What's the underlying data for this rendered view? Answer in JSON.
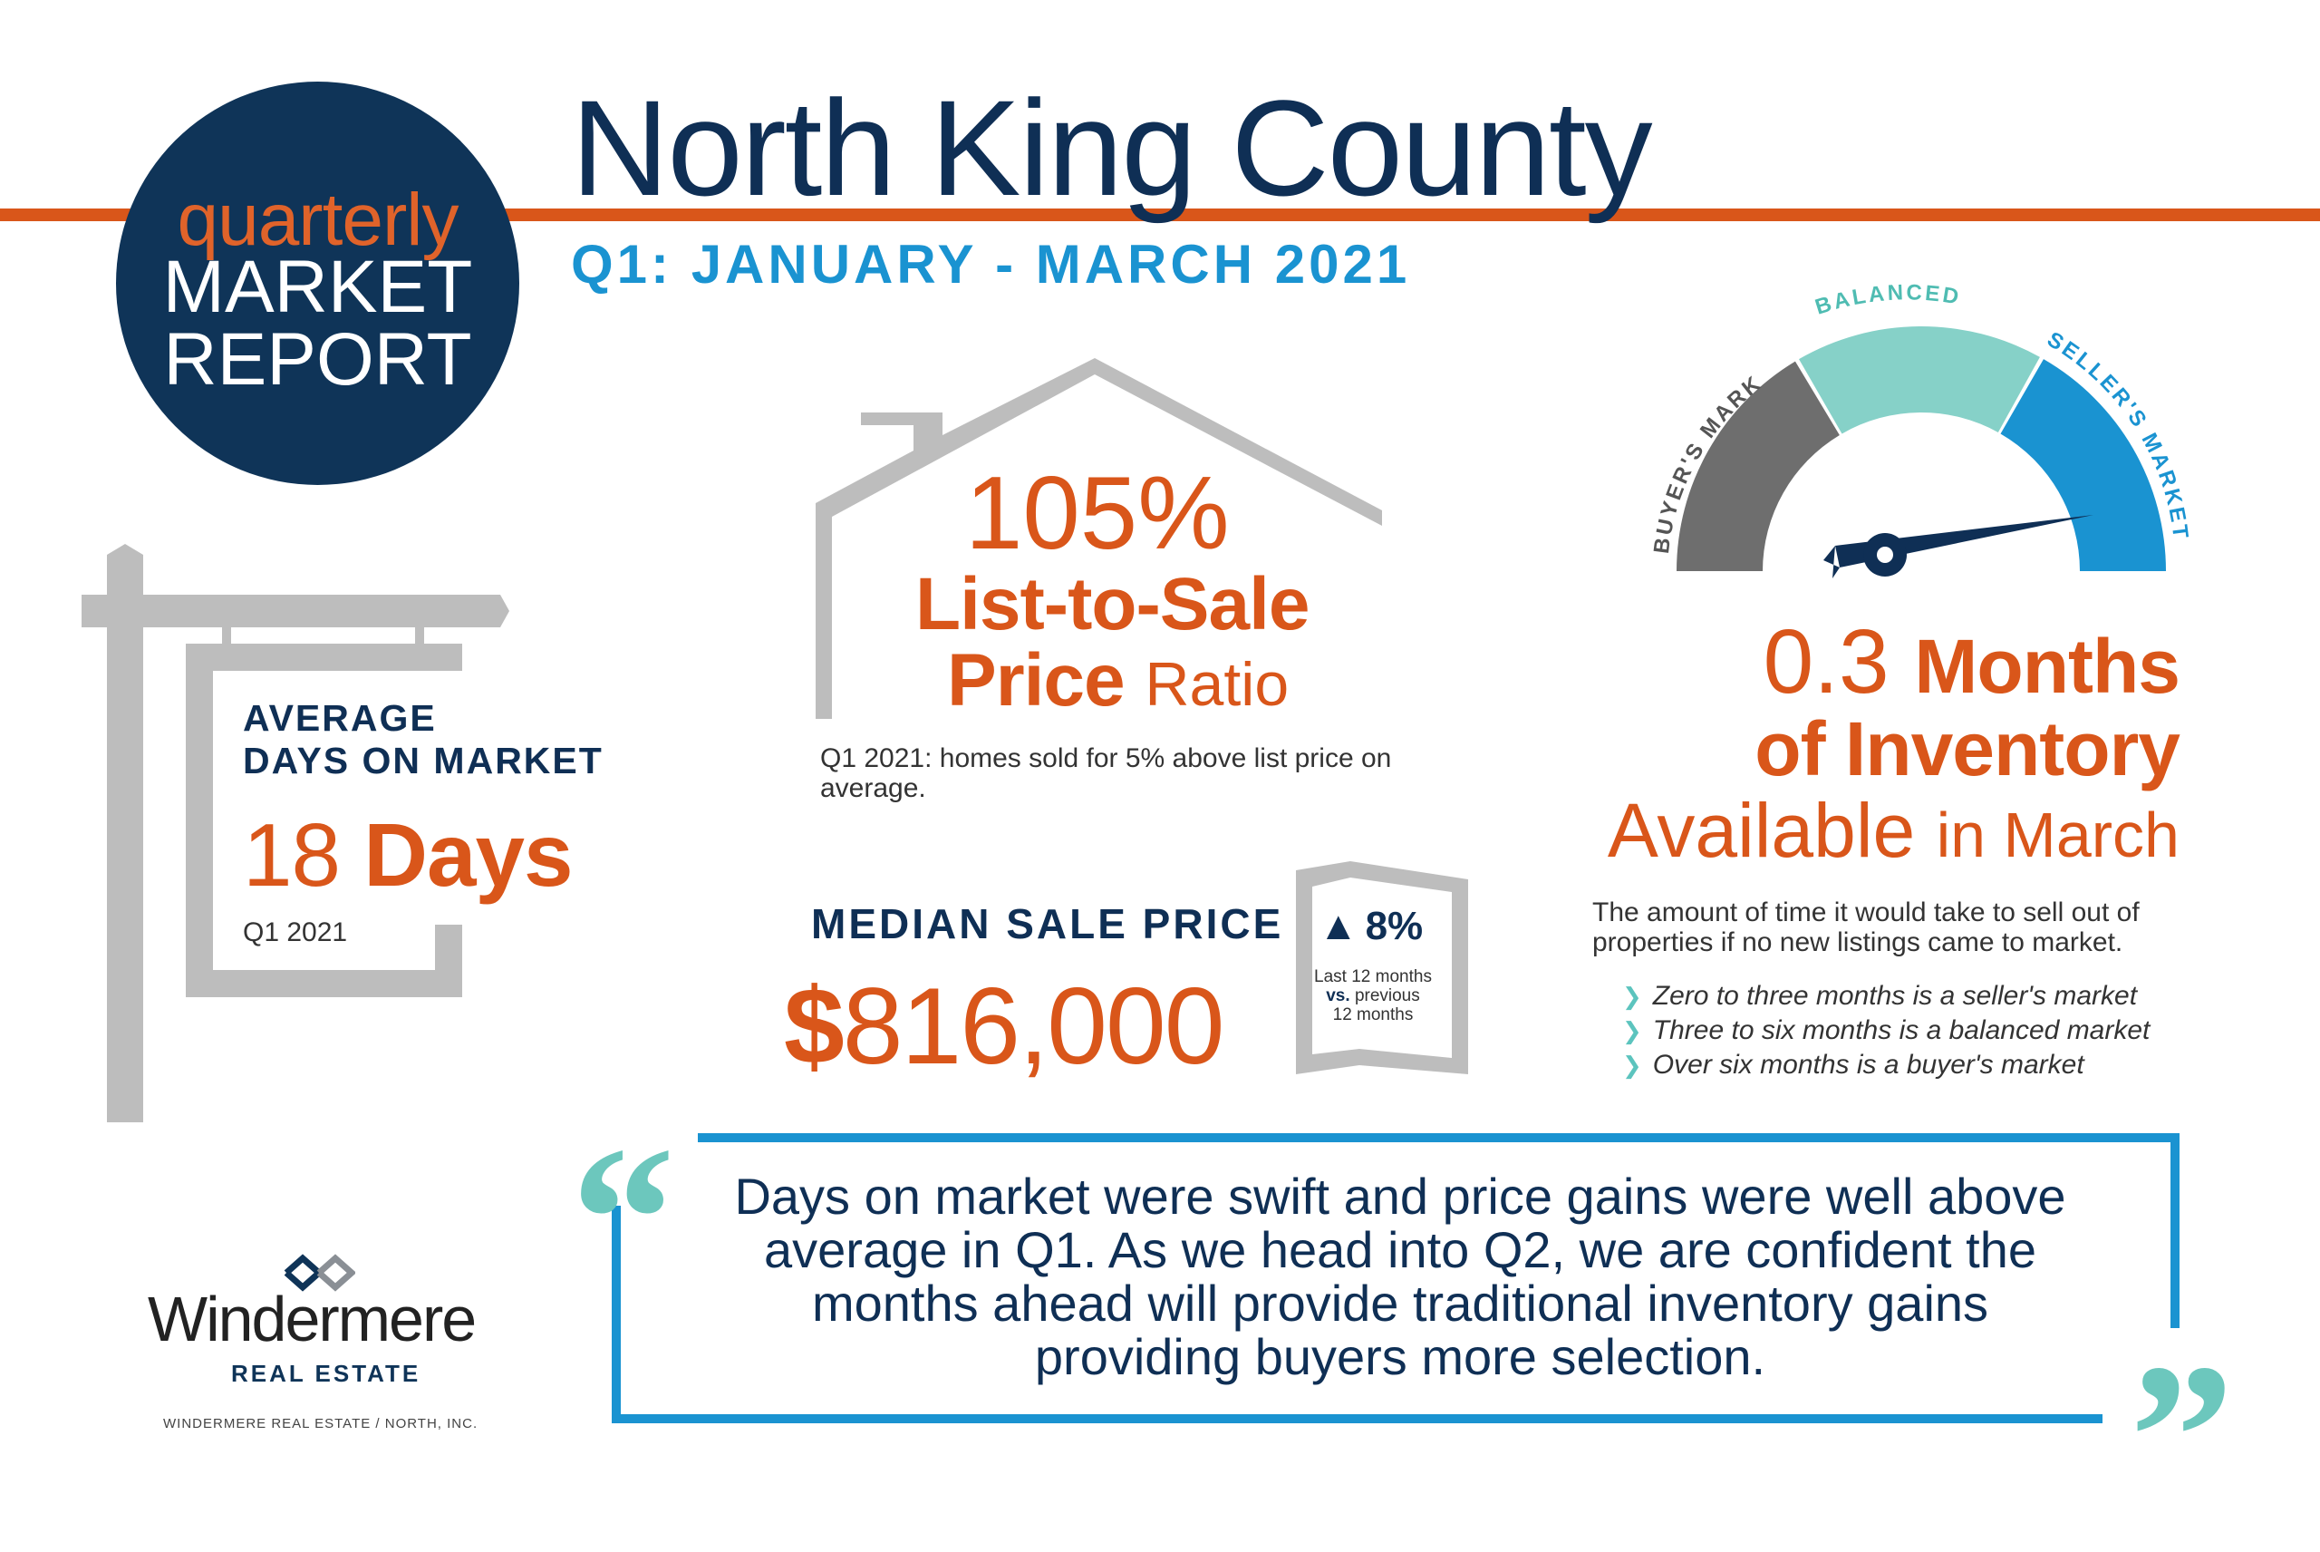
{
  "header": {
    "badge": {
      "line1": "quarterly",
      "line2": "MARKET",
      "line3": "REPORT"
    },
    "title": "North King County",
    "subtitle": "Q1: JANUARY - MARCH 2021"
  },
  "days_on_market": {
    "heading_line1": "AVERAGE",
    "heading_line2": "DAYS ON MARKET",
    "value_number": "18",
    "value_unit": "Days",
    "caption": "Q1 2021"
  },
  "list_to_sale": {
    "value": "105%",
    "label_line1": "List-to-Sale",
    "label_line2_bold": "Price",
    "label_line2_light": "Ratio",
    "note": "Q1 2021: homes sold for 5% above list price on average."
  },
  "median_sale_price": {
    "heading": "MEDIAN SALE PRICE",
    "value_symbol": "$",
    "value_number": "816,000",
    "change_arrow": "▲",
    "change_pct": "8%",
    "change_note_1": "Last 12 months",
    "change_note_2": "vs.",
    "change_note_3": "previous",
    "change_note_4": "12 months"
  },
  "gauge": {
    "label_buyers": "BUYER'S MARKET",
    "label_balanced": "BALANCED",
    "label_sellers": "SELLER'S MARKET",
    "colors": {
      "buyers": "#6e6e6e",
      "balanced": "#86d1c8",
      "sellers": "#1a93d1",
      "needle": "#0f2f55"
    }
  },
  "inventory": {
    "value": "0.3",
    "line1_bold": "Months",
    "line2": "of Inventory",
    "line3_light": "Available",
    "line3_small": "in March",
    "note": "The amount of time it would take to sell out of properties if no new listings came to market.",
    "bullets": [
      "Zero to three months is a seller's market",
      "Three to six months is a balanced market",
      "Over six months is a buyer's market"
    ]
  },
  "quote": {
    "text": "Days on market were swift and price gains were well above average in Q1. As we head into Q2, we are confident the months ahead will provide traditional inventory gains providing buyers more selection.",
    "open_mark": "“",
    "close_mark": "”"
  },
  "logo": {
    "name": "Windermere",
    "sub": "REAL ESTATE",
    "company": "WINDERMERE REAL ESTATE / NORTH, INC."
  },
  "colors": {
    "navy": "#0f2f55",
    "orange": "#d9561a",
    "blue": "#1a93d1",
    "teal": "#6cc7bd",
    "gray": "#bdbdbd"
  }
}
